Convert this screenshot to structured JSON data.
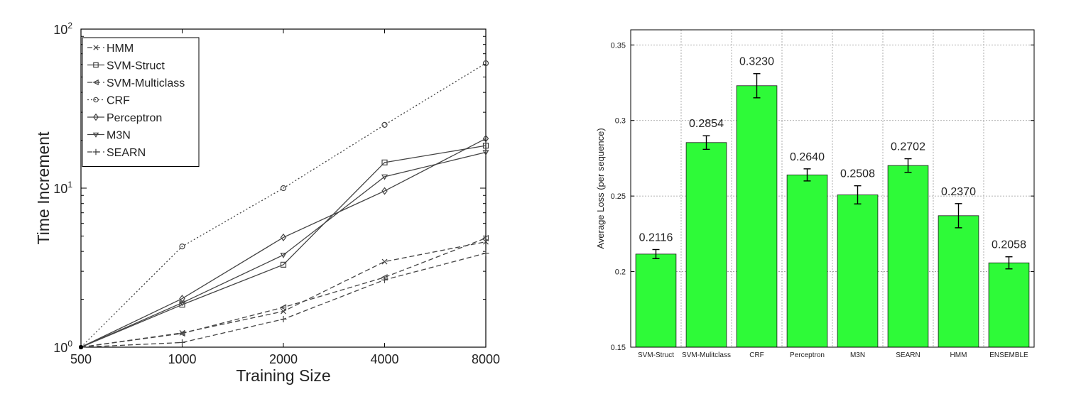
{
  "colors": {
    "bar_fill": "#2efa38",
    "bar_stroke": "#1a1a1a",
    "line": "#444444",
    "text": "#222222"
  },
  "chart_data": [
    {
      "type": "line",
      "xlabel": "Training Size",
      "ylabel": "Time Increment",
      "x_scale": "log2",
      "y_scale": "log10",
      "x": [
        500,
        1000,
        2000,
        4000,
        8000
      ],
      "x_tick_labels": [
        "500",
        "1000",
        "2000",
        "4000",
        "8000"
      ],
      "ylim": [
        1,
        100
      ],
      "y_ticks": [
        {
          "base": "10",
          "exp": "0"
        },
        {
          "base": "10",
          "exp": "1"
        },
        {
          "base": "10",
          "exp": "2"
        }
      ],
      "grid": false,
      "legend_position": "top-left",
      "series": [
        {
          "name": "HMM",
          "marker": "x",
          "dash": "dashed",
          "values": [
            1,
            1.23,
            1.68,
            3.45,
            4.6
          ]
        },
        {
          "name": "SVM-Struct",
          "marker": "square",
          "dash": "solid",
          "values": [
            1,
            1.85,
            3.3,
            14.5,
            18.5
          ]
        },
        {
          "name": "SVM-Multiclass",
          "marker": "triangle-left",
          "dash": "dashed",
          "values": [
            1,
            1.22,
            1.78,
            2.75,
            4.85
          ]
        },
        {
          "name": "CRF",
          "marker": "circle",
          "dash": "dotted",
          "values": [
            1,
            4.3,
            10,
            25,
            61
          ]
        },
        {
          "name": "Perceptron",
          "marker": "diamond",
          "dash": "solid",
          "values": [
            1,
            2.02,
            4.9,
            9.6,
            20.5
          ]
        },
        {
          "name": "M3N",
          "marker": "triangle-down",
          "dash": "solid",
          "values": [
            1,
            1.9,
            3.8,
            11.8,
            16.8
          ]
        },
        {
          "name": "SEARN",
          "marker": "plus",
          "dash": "dashed",
          "values": [
            1,
            1.07,
            1.5,
            2.65,
            3.9
          ]
        }
      ]
    },
    {
      "type": "bar",
      "ylabel": "Average Loss (per sequence)",
      "ylim": [
        0.15,
        0.36
      ],
      "y_ticks": [
        "0.15",
        "0.2",
        "0.25",
        "0.3",
        "0.35"
      ],
      "grid": true,
      "categories": [
        "SVM-Struct",
        "SVM-Mulitclass",
        "CRF",
        "Perceptron",
        "M3N",
        "SEARN",
        "HMM",
        "ENSEMBLE"
      ],
      "values": [
        0.2116,
        0.2854,
        0.323,
        0.264,
        0.2508,
        0.2702,
        0.237,
        0.2058
      ],
      "value_labels": [
        "0.2116",
        "0.2854",
        "0.3230",
        "0.2640",
        "0.2508",
        "0.2702",
        "0.2370",
        "0.2058"
      ],
      "error": [
        0.003,
        0.0045,
        0.008,
        0.004,
        0.006,
        0.0045,
        0.008,
        0.004
      ]
    }
  ]
}
